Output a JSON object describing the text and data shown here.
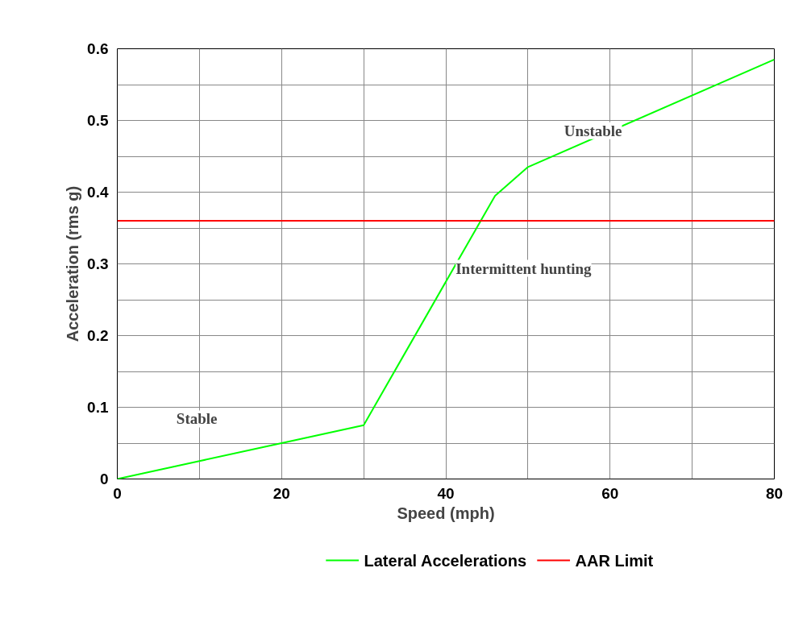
{
  "chart_data": {
    "type": "line",
    "xlabel": "Speed (mph)",
    "ylabel": "Acceleration (rms g)",
    "x": [
      0,
      10,
      20,
      30,
      46,
      50,
      80
    ],
    "series": [
      {
        "name": "Lateral Accelerations",
        "color": "#00ff00",
        "values": [
          0,
          0.025,
          0.05,
          0.075,
          0.395,
          0.435,
          0.585
        ]
      }
    ],
    "ref_lines": [
      {
        "axis": "y",
        "value": 0.36,
        "label": "AAR Limit",
        "color": "#ff0000"
      }
    ],
    "annotations": [
      "Stable",
      "Intermittent hunting",
      "Unstable"
    ],
    "xlim": [
      0,
      80
    ],
    "ylim": [
      0,
      0.6
    ],
    "xticks": [
      0,
      {
        "value": 10,
        "label": null
      },
      20,
      {
        "value": 30,
        "label": null
      },
      40,
      {
        "value": 50,
        "label": null
      },
      60,
      {
        "value": 70,
        "label": null
      },
      80
    ],
    "yticks": [
      0,
      {
        "value": 0.05,
        "label": null
      },
      0.1,
      {
        "value": 0.15,
        "label": null
      },
      0.2,
      {
        "value": 0.25,
        "label": null
      },
      0.3,
      {
        "value": 0.35,
        "label": null
      },
      0.4,
      {
        "value": 0.45,
        "label": null
      },
      0.5,
      {
        "value": 0.55,
        "label": null
      },
      0.6
    ],
    "grid": true,
    "legend": "bottom",
    "marker": "none",
    "line_style": "solid"
  }
}
